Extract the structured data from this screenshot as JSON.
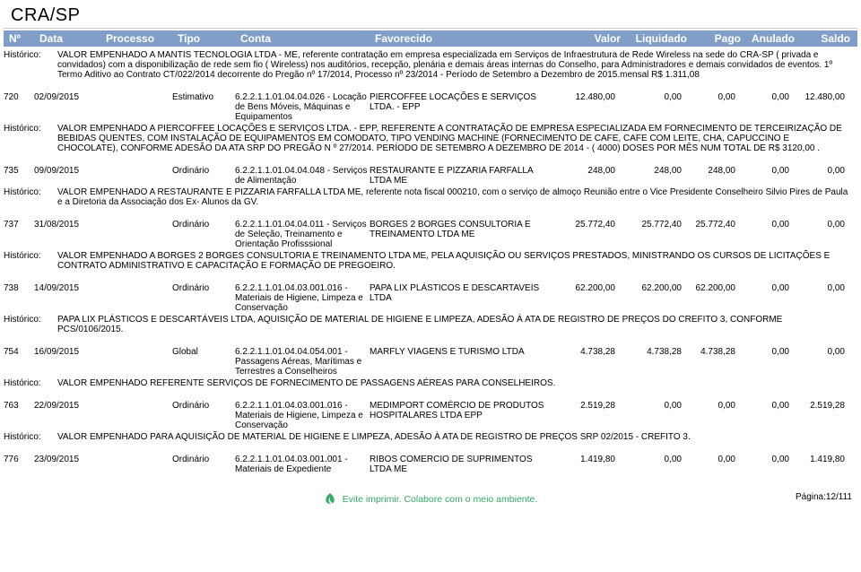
{
  "org": "CRA/SP",
  "columns": {
    "num": "Nº",
    "data": "Data",
    "processo": "Processo",
    "tipo": "Tipo",
    "conta": "Conta",
    "favorecido": "Favorecido",
    "valor": "Valor",
    "liquidado": "Liquidado",
    "pago": "Pago",
    "anulado": "Anulado",
    "saldo": "Saldo"
  },
  "hist_label": "Histórico:",
  "hist0": "VALOR EMPENHADO A MANTIS TECNOLOGIA LTDA - ME, referente contratação em empresa especializada em Serviços de Infraestrutura de Rede Wireless na sede do CRA-SP ( privada e convidados)  com a disponibilização de rede sem fio ( Wireless) nos auditórios, recepção, plenária e demais áreas internas do Conselho, para Administradores e demais convidados de eventos. 1º Termo Aditivo ao Contrato CT/022/2014  decorrente do Pregão nº 17/2014, Processo nº 23/2014 - Período de Setembro a Dezembro de 2015.mensal R$ 1.311,08",
  "rows": [
    {
      "num": "720",
      "data": "02/09/2015",
      "tipo": "Estimativo",
      "conta": "6.2.2.1.1.01.04.04.026 - Locação de Bens Móveis, Máquinas e Equipamentos",
      "fav": "PIERCOFFEE LOCAÇÕES E SERVIÇOS LTDA. - EPP",
      "valor": "12.480,00",
      "liq": "0,00",
      "pago": "0,00",
      "anul": "0,00",
      "sal": "12.480,00",
      "hist": "VALOR EMPENHADO A PIERCOFFEE LOCAÇÕES E SERVIÇOS LTDA. - EPP, REFERENTE A  CONTRATAÇÃO DE EMPRESA ESPECIALIZADA EM  FORNECIMENTO DE TERCEIRIZAÇÃO DE BEBIDAS QUENTES, COM INSTALAÇÃO DE EQUIPAMENTOS EM COMODATO, TIPO VENDING MACHINE (FORNECIMENTO DE CAFE, CAFE COM LEITE, CHA, CAPUCCINO E CHOCOLATE), CONFORME ADESÃO DA ATA SRP  DO PREGÃO N º 27/2014.  PERÍODO DE SETEMBRO A DEZEMBRO DE 2014 - ( 4000) DOSES POR MÊS  NUM TOTAL DE R$ 3120,00 ."
    },
    {
      "num": "735",
      "data": "09/09/2015",
      "tipo": "Ordinário",
      "conta": "6.2.2.1.1.01.04.04.048 - Serviços de Alimentação",
      "fav": "RESTAURANTE E PIZZARIA FARFALLA LTDA ME",
      "valor": "248,00",
      "liq": "248,00",
      "pago": "248,00",
      "anul": "0,00",
      "sal": "0,00",
      "hist": "VALOR EMPENHADO A RESTAURANTE E PIZZARIA FARFALLA LTDA ME,  referente  nota fiscal 000210, com o serviço de almoço Reunião entre o Vice Presidente  Conselheiro Silvio Pires de Paula e a Diretoria da Associação dos Ex- Alunos da GV."
    },
    {
      "num": "737",
      "data": "31/08/2015",
      "tipo": "Ordinário",
      "conta": "6.2.2.1.1.01.04.04.011 - Serviços de Seleção, Treinamento e Orientação Profisssional",
      "fav": "BORGES 2 BORGES CONSULTORIA E TREINAMENTO LTDA ME",
      "valor": "25.772,40",
      "liq": "25.772,40",
      "pago": "25.772,40",
      "anul": "0,00",
      "sal": "0,00",
      "hist": "VALOR EMPENHADO A BORGES 2 BORGES CONSULTORIA E TREINAMENTO LTDA ME, PELA AQUISIÇÃO OU SERVIÇOS PRESTADOS, MINISTRANDO OS CURSOS DE LICITAÇÕES E CONTRATO ADMINISTRATIVO E CAPACITAÇÃO E FORMAÇÃO DE PREGOEIRO."
    },
    {
      "num": "738",
      "data": "14/09/2015",
      "tipo": "Ordinário",
      "conta": "6.2.2.1.1.01.04.03.001.016 - Materiais de Higiene, Limpeza e Conservação",
      "fav": "PAPA LIX PLÁSTICOS E DESCARTAVEIS LTDA",
      "valor": "62.200,00",
      "liq": "62.200,00",
      "pago": "62.200,00",
      "anul": "0,00",
      "sal": "0,00",
      "hist": "PAPA LIX PLÁSTICOS E DESCARTÁVEIS LTDA, AQUISIÇÃO DE MATERIAL DE HIGIENE E LIMPEZA, ADESÃO À ATA DE REGISTRO DE PREÇOS DO CREFITO 3, CONFORME PCS/0106/2015."
    },
    {
      "num": "754",
      "data": "16/09/2015",
      "tipo": "Global",
      "conta": "6.2.2.1.1.01.04.04.054.001 - Passagens Aéreas, Marítimas e Terrestres a Conselheiros",
      "fav": "MARFLY VIAGENS E TURISMO LTDA",
      "valor": "4.738,28",
      "liq": "4.738,28",
      "pago": "4.738,28",
      "anul": "0,00",
      "sal": "0,00",
      "hist": "VALOR EMPENHADO REFERENTE SERVIÇOS DE FORNECIMENTO DE PASSAGENS AÉREAS PARA CONSELHEIROS."
    },
    {
      "num": "763",
      "data": "22/09/2015",
      "tipo": "Ordinário",
      "conta": "6.2.2.1.1.01.04.03.001.016 - Materiais de Higiene, Limpeza e Conservação",
      "fav": "MEDIMPORT COMÉRCIO DE PRODUTOS HOSPITALARES LTDA EPP",
      "valor": "2.519,28",
      "liq": "0,00",
      "pago": "0,00",
      "anul": "0,00",
      "sal": "2.519,28",
      "hist": "VALOR EMPENHADO  PARA AQUISIÇÃO DE MATERIAL DE HIGIENE E LIMPEZA, ADESÃO À ATA DE REGISTRO DE PREÇOS SRP 02/2015 - CREFITO 3."
    },
    {
      "num": "776",
      "data": "23/09/2015",
      "tipo": "Ordinário",
      "conta": "6.2.2.1.1.01.04.03.001.001 - Materiais de Expediente",
      "fav": "RIBOS COMERCIO DE SUPRIMENTOS LTDA ME",
      "valor": "1.419,80",
      "liq": "0,00",
      "pago": "0,00",
      "anul": "0,00",
      "sal": "1.419,80",
      "hist": ""
    }
  ],
  "footer_msg": "Evite imprimir. Colabore com o meio ambiente.",
  "footer_page": "Página:12/111"
}
